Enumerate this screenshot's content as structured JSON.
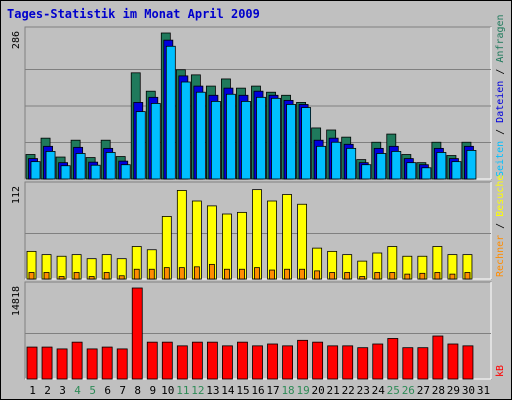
{
  "title": "Tages-Statistik im Monat April 2009",
  "colors": {
    "background": "#c0c0c0",
    "plot_bg": "#c0c0c0",
    "anfragen": "#1f7a5c",
    "dateien": "#0000dd",
    "seiten": "#00bfff",
    "besuche": "#ffff00",
    "rechner": "#ff8c00",
    "kb": "#ff0000",
    "weekend_label": "#2e8b57",
    "weekday_label": "#000000",
    "title": "#0000cc"
  },
  "chart_data": [
    {
      "type": "bar",
      "name": "top",
      "ymax_label": "286",
      "ylim": [
        0,
        286
      ],
      "right_label": {
        "parts": [
          {
            "text": "Seiten",
            "color": "#00bfff"
          },
          {
            "text": " / ",
            "color": "#000000"
          },
          {
            "text": "Dateien",
            "color": "#0000dd"
          },
          {
            "text": " / ",
            "color": "#000000"
          },
          {
            "text": "Anfragen",
            "color": "#1f7a5c"
          }
        ]
      },
      "categories": [
        "1",
        "2",
        "3",
        "4",
        "5",
        "6",
        "7",
        "8",
        "9",
        "10",
        "11",
        "12",
        "13",
        "14",
        "15",
        "16",
        "17",
        "18",
        "19",
        "20",
        "21",
        "22",
        "23",
        "24",
        "25",
        "26",
        "27",
        "28",
        "29",
        "30",
        "31"
      ],
      "weekend": [
        "4",
        "5",
        "11",
        "12",
        "18",
        "19",
        "25",
        "26"
      ],
      "series": [
        {
          "name": "Anfragen",
          "values": [
            48,
            80,
            43,
            76,
            42,
            76,
            44,
            208,
            172,
            286,
            214,
            204,
            182,
            196,
            178,
            182,
            170,
            164,
            150,
            100,
            96,
            82,
            38,
            72,
            88,
            48,
            32,
            72,
            46,
            72,
            0
          ]
        },
        {
          "name": "Dateien",
          "values": [
            40,
            64,
            32,
            62,
            33,
            60,
            35,
            150,
            160,
            272,
            202,
            182,
            164,
            178,
            164,
            172,
            164,
            154,
            146,
            76,
            80,
            68,
            32,
            60,
            64,
            40,
            28,
            60,
            40,
            64,
            0
          ]
        },
        {
          "name": "Seiten",
          "values": [
            34,
            54,
            26,
            50,
            27,
            52,
            28,
            132,
            148,
            260,
            190,
            170,
            152,
            166,
            152,
            160,
            158,
            146,
            140,
            64,
            72,
            60,
            28,
            50,
            54,
            32,
            22,
            52,
            34,
            56,
            0
          ]
        }
      ]
    },
    {
      "type": "bar",
      "name": "middle",
      "ymax_label": "112",
      "ylim": [
        0,
        112
      ],
      "right_label": {
        "parts": [
          {
            "text": "Rechner",
            "color": "#ff8c00"
          },
          {
            "text": " / ",
            "color": "#000000"
          },
          {
            "text": "Besuche",
            "color": "#ffff00"
          }
        ]
      },
      "categories": [
        "1",
        "2",
        "3",
        "4",
        "5",
        "6",
        "7",
        "8",
        "9",
        "10",
        "11",
        "12",
        "13",
        "14",
        "15",
        "16",
        "17",
        "18",
        "19",
        "20",
        "21",
        "22",
        "23",
        "24",
        "25",
        "26",
        "27",
        "28",
        "29",
        "30",
        "31"
      ],
      "series": [
        {
          "name": "Besuche",
          "values": [
            34,
            30,
            28,
            30,
            25,
            30,
            25,
            40,
            36,
            77,
            109,
            96,
            90,
            80,
            82,
            110,
            96,
            104,
            92,
            38,
            34,
            30,
            22,
            32,
            40,
            28,
            28,
            40,
            30,
            30,
            0
          ]
        },
        {
          "name": "Rechner",
          "values": [
            8,
            8,
            3,
            8,
            3,
            8,
            4,
            12,
            12,
            14,
            14,
            15,
            18,
            12,
            12,
            14,
            11,
            12,
            12,
            10,
            8,
            8,
            3,
            8,
            8,
            6,
            7,
            8,
            6,
            8,
            0
          ]
        }
      ]
    },
    {
      "type": "bar",
      "name": "bottom",
      "ymax_label": "14818",
      "ylim": [
        0,
        14818
      ],
      "right_label": {
        "parts": [
          {
            "text": "kB",
            "color": "#ff0000"
          }
        ]
      },
      "categories": [
        "1",
        "2",
        "3",
        "4",
        "5",
        "6",
        "7",
        "8",
        "9",
        "10",
        "11",
        "12",
        "13",
        "14",
        "15",
        "16",
        "17",
        "18",
        "19",
        "20",
        "21",
        "22",
        "23",
        "24",
        "25",
        "26",
        "27",
        "28",
        "29",
        "30",
        "31"
      ],
      "series": [
        {
          "name": "kB",
          "values": [
            5200,
            5200,
            4900,
            6000,
            4900,
            5200,
            4900,
            14818,
            6000,
            6000,
            5400,
            6000,
            6000,
            5400,
            6000,
            5400,
            5700,
            5400,
            6300,
            6000,
            5400,
            5400,
            5100,
            5700,
            6600,
            5100,
            5100,
            7000,
            5700,
            5400,
            0
          ]
        }
      ]
    }
  ]
}
